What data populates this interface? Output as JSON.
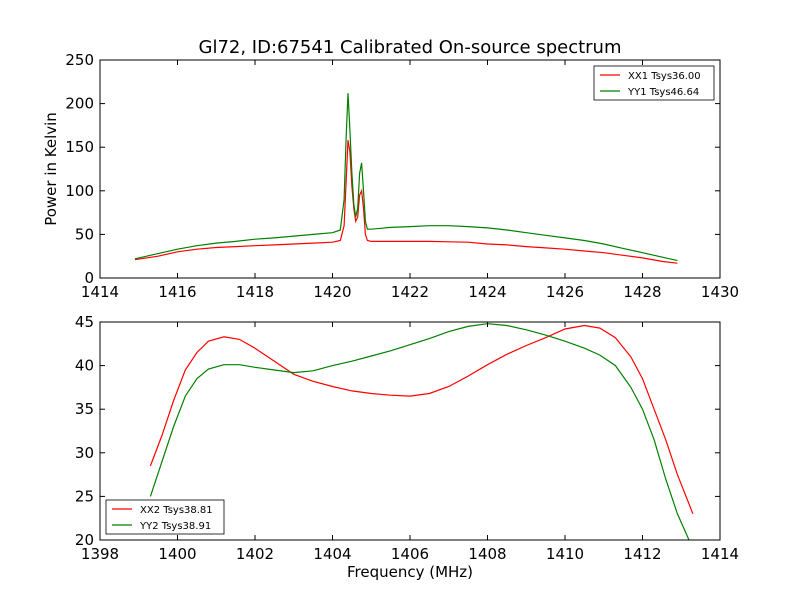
{
  "chart_data": [
    {
      "type": "line",
      "title": "Gl72, ID:67541 Calibrated On-source spectrum",
      "xlabel": "",
      "ylabel": "Power in Kelvin",
      "xlim": [
        1414,
        1430
      ],
      "ylim": [
        0,
        250
      ],
      "xticks": [
        "1414",
        "1416",
        "1418",
        "1420",
        "1422",
        "1424",
        "1426",
        "1428",
        "1430"
      ],
      "yticks": [
        "0",
        "50",
        "100",
        "150",
        "200",
        "250"
      ],
      "legend": "top-right",
      "grid": false,
      "series": [
        {
          "name": "XX1 Tsys36.00",
          "color": "#ff0000",
          "x": [
            1414.9,
            1415.5,
            1416.0,
            1416.5,
            1417.0,
            1417.5,
            1418.0,
            1418.5,
            1419.0,
            1419.5,
            1420.0,
            1420.2,
            1420.3,
            1420.35,
            1420.4,
            1420.45,
            1420.5,
            1420.55,
            1420.6,
            1420.65,
            1420.7,
            1420.75,
            1420.8,
            1420.85,
            1420.9,
            1421.0,
            1421.2,
            1421.5,
            1422.0,
            1422.5,
            1423.0,
            1423.5,
            1424.0,
            1424.5,
            1425.0,
            1425.5,
            1426.0,
            1426.5,
            1427.0,
            1427.5,
            1428.0,
            1428.5,
            1428.9
          ],
          "y": [
            21,
            25,
            30,
            33,
            35,
            36,
            37,
            38,
            39,
            40,
            41,
            43,
            60,
            110,
            158,
            145,
            105,
            80,
            65,
            70,
            95,
            100,
            80,
            50,
            43,
            42,
            42,
            42,
            42,
            42,
            41.5,
            41,
            39,
            38,
            36,
            34.5,
            33,
            31,
            29,
            26,
            23,
            19,
            17
          ]
        },
        {
          "name": "YY1 Tsys46.64",
          "color": "#008000",
          "x": [
            1414.9,
            1415.5,
            1416.0,
            1416.5,
            1417.0,
            1417.5,
            1418.0,
            1418.5,
            1419.0,
            1419.5,
            1420.0,
            1420.2,
            1420.3,
            1420.35,
            1420.4,
            1420.45,
            1420.5,
            1420.55,
            1420.6,
            1420.65,
            1420.7,
            1420.75,
            1420.8,
            1420.85,
            1420.9,
            1421.0,
            1421.5,
            1422.0,
            1422.5,
            1423.0,
            1423.5,
            1424.0,
            1424.5,
            1425.0,
            1425.5,
            1426.0,
            1426.5,
            1427.0,
            1427.5,
            1428.0,
            1428.5,
            1428.9
          ],
          "y": [
            22,
            28,
            33,
            37,
            40,
            42,
            44.5,
            46,
            48,
            50,
            52,
            55,
            90,
            160,
            212,
            170,
            120,
            85,
            70,
            80,
            120,
            132,
            100,
            65,
            56,
            56,
            58,
            59,
            60,
            60,
            59,
            57.5,
            55,
            52,
            49,
            46,
            43,
            39,
            34,
            29,
            24,
            20
          ]
        }
      ]
    },
    {
      "type": "line",
      "title": "",
      "xlabel": "Frequency (MHz)",
      "ylabel": "",
      "xlim": [
        1398,
        1414
      ],
      "ylim": [
        20,
        45
      ],
      "xticks": [
        "1398",
        "1400",
        "1402",
        "1404",
        "1406",
        "1408",
        "1410",
        "1412",
        "1414"
      ],
      "yticks": [
        "20",
        "25",
        "30",
        "35",
        "40",
        "45"
      ],
      "legend": "bottom-left",
      "grid": false,
      "series": [
        {
          "name": "XX2 Tsys38.81",
          "color": "#ff0000",
          "x": [
            1399.3,
            1399.6,
            1399.9,
            1400.2,
            1400.5,
            1400.8,
            1401.2,
            1401.6,
            1402.0,
            1402.5,
            1403.0,
            1403.5,
            1404.0,
            1404.5,
            1405.0,
            1405.5,
            1406.0,
            1406.5,
            1407.0,
            1407.5,
            1408.0,
            1408.5,
            1409.0,
            1409.5,
            1410.0,
            1410.5,
            1410.9,
            1411.3,
            1411.7,
            1412.0,
            1412.3,
            1412.6,
            1412.9,
            1413.3
          ],
          "y": [
            28.5,
            32,
            36,
            39.5,
            41.5,
            42.8,
            43.3,
            43,
            42,
            40.5,
            39,
            38.2,
            37.6,
            37.1,
            36.8,
            36.6,
            36.5,
            36.8,
            37.6,
            38.8,
            40.1,
            41.3,
            42.3,
            43.2,
            44.2,
            44.6,
            44.3,
            43.2,
            41,
            38.5,
            35,
            31.5,
            27.5,
            23
          ]
        },
        {
          "name": "YY2 Tsys38.91",
          "color": "#008000",
          "x": [
            1399.3,
            1399.6,
            1399.9,
            1400.2,
            1400.5,
            1400.8,
            1401.2,
            1401.6,
            1402.0,
            1402.5,
            1403.0,
            1403.5,
            1404.0,
            1404.5,
            1405.0,
            1405.5,
            1406.0,
            1406.5,
            1407.0,
            1407.5,
            1408.0,
            1408.5,
            1409.0,
            1409.5,
            1410.0,
            1410.5,
            1410.9,
            1411.3,
            1411.7,
            1412.0,
            1412.3,
            1412.6,
            1412.9,
            1413.2
          ],
          "y": [
            25,
            29,
            33,
            36.5,
            38.5,
            39.6,
            40.1,
            40.1,
            39.8,
            39.5,
            39.2,
            39.4,
            40,
            40.5,
            41.1,
            41.7,
            42.4,
            43.1,
            43.9,
            44.5,
            44.8,
            44.6,
            44.1,
            43.5,
            42.8,
            42,
            41.2,
            40,
            37.5,
            35,
            31.5,
            27,
            23,
            20
          ]
        }
      ]
    }
  ]
}
